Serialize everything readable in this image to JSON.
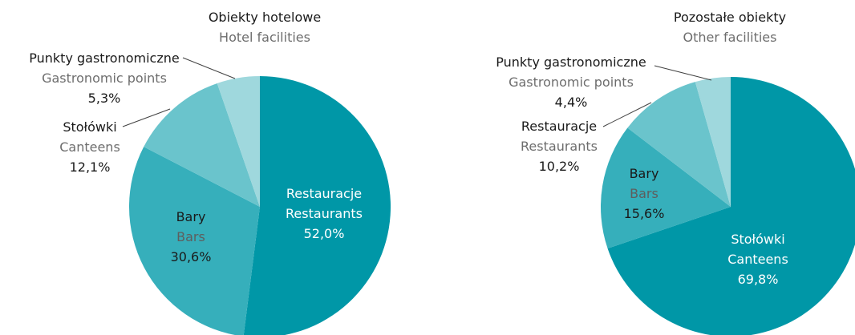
{
  "chart_data": [
    {
      "type": "pie",
      "title_pl": "Obiekty hotelowe",
      "title_en": "Hotel facilities",
      "slices": [
        {
          "pl": "Restauracje",
          "en": "Restaurants",
          "value": 52.0,
          "label": "52,0%",
          "color": "#0097a7"
        },
        {
          "pl": "Bary",
          "en": "Bars",
          "value": 30.6,
          "label": "30,6%",
          "color": "#36afbb"
        },
        {
          "pl": "Stołówki",
          "en": "Canteens",
          "value": 12.1,
          "label": "12,1%",
          "color": "#6ac4cc"
        },
        {
          "pl": "Punkty gastronomiczne",
          "en": "Gastronomic points",
          "value": 5.3,
          "label": "5,3%",
          "color": "#9fd8dd"
        }
      ]
    },
    {
      "type": "pie",
      "title_pl": "Pozostałe obiekty",
      "title_en": "Other facilities",
      "slices": [
        {
          "pl": "Stołówki",
          "en": "Canteens",
          "value": 69.8,
          "label": "69,8%",
          "color": "#0097a7"
        },
        {
          "pl": "Bary",
          "en": "Bars",
          "value": 15.6,
          "label": "15,6%",
          "color": "#36afbb"
        },
        {
          "pl": "Restauracje",
          "en": "Restaurants",
          "value": 10.2,
          "label": "10,2%",
          "color": "#6ac4cc"
        },
        {
          "pl": "Punkty gastronomiczne",
          "en": "Gastronomic points",
          "value": 4.4,
          "label": "4,4%",
          "color": "#9fd8dd"
        }
      ]
    }
  ]
}
